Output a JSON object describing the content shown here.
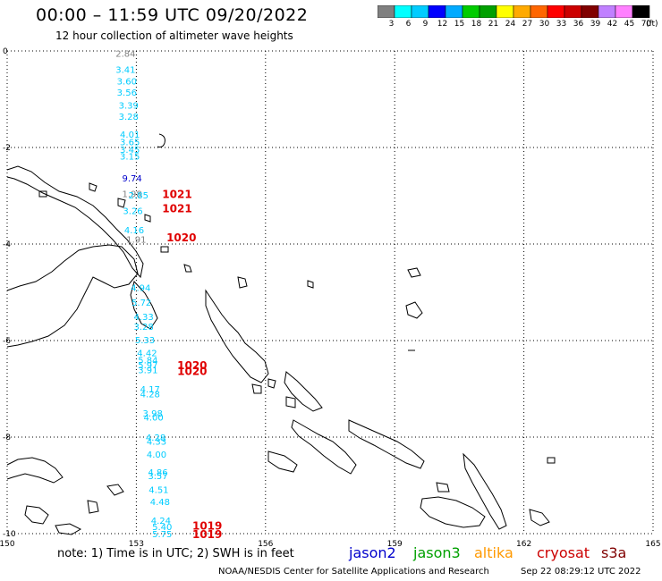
{
  "header": {
    "title": "00:00 – 11:59 UTC 09/20/2022",
    "subtitle": "12 hour collection of altimeter wave heights"
  },
  "colorbar": {
    "colors": [
      "#808080",
      "#00ffff",
      "#00ccff",
      "#0000ff",
      "#00aaff",
      "#00cc00",
      "#00a000",
      "#ffff00",
      "#ffaa00",
      "#ff6600",
      "#ff0000",
      "#cc0000",
      "#800000",
      "#c080ff",
      "#ff80ff",
      "#000000"
    ],
    "labels": [
      "3",
      "6",
      "9",
      "12",
      "15",
      "18",
      "21",
      "24",
      "27",
      "30",
      "33",
      "36",
      "39",
      "42",
      "45",
      "70"
    ],
    "unit": "(ft)"
  },
  "axes": {
    "lon_ticks": [
      "150",
      "153",
      "156",
      "159",
      "162",
      "165"
    ],
    "lat_ticks": [
      "0",
      "-2",
      "-4",
      "-6",
      "-8",
      "-10"
    ],
    "lon_range": [
      150,
      165
    ],
    "lat_range": [
      0,
      -10
    ]
  },
  "observations": [
    {
      "text": "2.84",
      "lon": 152.75,
      "lat": -0.05,
      "color": "#808080"
    },
    {
      "text": "3.41",
      "lon": 152.75,
      "lat": -0.38,
      "color": "#00ccff"
    },
    {
      "text": "3.60",
      "lon": 152.78,
      "lat": -0.62,
      "color": "#00ccff"
    },
    {
      "text": "3.56",
      "lon": 152.78,
      "lat": -0.85,
      "color": "#00ccff"
    },
    {
      "text": "3.39",
      "lon": 152.82,
      "lat": -1.12,
      "color": "#00ccff"
    },
    {
      "text": "3.28",
      "lon": 152.82,
      "lat": -1.35,
      "color": "#00ccff"
    },
    {
      "text": "4.01",
      "lon": 152.85,
      "lat": -1.72,
      "color": "#00ccff"
    },
    {
      "text": "3.65",
      "lon": 152.85,
      "lat": -1.88,
      "color": "#00ccff"
    },
    {
      "text": "3.45",
      "lon": 152.85,
      "lat": -2.04,
      "color": "#00ccff"
    },
    {
      "text": "3.15",
      "lon": 152.85,
      "lat": -2.18,
      "color": "#00ccff"
    },
    {
      "text": "9.74",
      "lon": 152.9,
      "lat": -2.63,
      "color": "#0000cc"
    },
    {
      "text": "1.98",
      "lon": 152.9,
      "lat": -2.95,
      "color": "#808080"
    },
    {
      "text": "2.85",
      "lon": 153.05,
      "lat": -2.98,
      "color": "#00ccff"
    },
    {
      "text": "3.26",
      "lon": 152.92,
      "lat": -3.31,
      "color": "#00ccff"
    },
    {
      "text": "4.16",
      "lon": 152.95,
      "lat": -3.7,
      "color": "#00ccff"
    },
    {
      "text": "1.91",
      "lon": 153.0,
      "lat": -3.9,
      "color": "#808080"
    },
    {
      "text": "4.94",
      "lon": 153.1,
      "lat": -4.9,
      "color": "#00ccff"
    },
    {
      "text": "5.72",
      "lon": 153.12,
      "lat": -5.2,
      "color": "#00ccff"
    },
    {
      "text": "4.33",
      "lon": 153.17,
      "lat": -5.5,
      "color": "#00ccff"
    },
    {
      "text": "3.28",
      "lon": 153.17,
      "lat": -5.7,
      "color": "#00ccff"
    },
    {
      "text": "5.33",
      "lon": 153.2,
      "lat": -5.98,
      "color": "#00ccff"
    },
    {
      "text": "4.42",
      "lon": 153.25,
      "lat": -6.25,
      "color": "#00ccff"
    },
    {
      "text": "5.84",
      "lon": 153.27,
      "lat": -6.4,
      "color": "#00ccff"
    },
    {
      "text": "5.97",
      "lon": 153.27,
      "lat": -6.5,
      "color": "#00ccff"
    },
    {
      "text": "3.91",
      "lon": 153.27,
      "lat": -6.6,
      "color": "#00ccff"
    },
    {
      "text": "4.17",
      "lon": 153.32,
      "lat": -7.0,
      "color": "#00ccff"
    },
    {
      "text": "4.28",
      "lon": 153.32,
      "lat": -7.1,
      "color": "#00ccff"
    },
    {
      "text": "3.98",
      "lon": 153.38,
      "lat": -7.5,
      "color": "#00ccff"
    },
    {
      "text": "4.00",
      "lon": 153.4,
      "lat": -7.58,
      "color": "#00ccff"
    },
    {
      "text": "4.28",
      "lon": 153.45,
      "lat": -8.0,
      "color": "#00ccff"
    },
    {
      "text": "4.33",
      "lon": 153.47,
      "lat": -8.08,
      "color": "#00ccff"
    },
    {
      "text": "4.00",
      "lon": 153.47,
      "lat": -8.35,
      "color": "#00ccff"
    },
    {
      "text": "4.86",
      "lon": 153.5,
      "lat": -8.72,
      "color": "#00ccff"
    },
    {
      "text": "3.57",
      "lon": 153.5,
      "lat": -8.8,
      "color": "#00ccff"
    },
    {
      "text": "4.51",
      "lon": 153.52,
      "lat": -9.08,
      "color": "#00ccff"
    },
    {
      "text": "4.48",
      "lon": 153.55,
      "lat": -9.33,
      "color": "#00ccff"
    },
    {
      "text": "4.24",
      "lon": 153.57,
      "lat": -9.72,
      "color": "#00ccff"
    },
    {
      "text": "5.40",
      "lon": 153.6,
      "lat": -9.85,
      "color": "#00ccff"
    },
    {
      "text": "5.75",
      "lon": 153.6,
      "lat": -10.0,
      "color": "#00ccff"
    }
  ],
  "pressure_labels": [
    {
      "text": "1021",
      "lon": 153.6,
      "lat": -2.95
    },
    {
      "text": "1021",
      "lon": 153.6,
      "lat": -3.25
    },
    {
      "text": "1020",
      "lon": 153.7,
      "lat": -3.85
    },
    {
      "text": "1020",
      "lon": 153.95,
      "lat": -6.5
    },
    {
      "text": "1020",
      "lon": 153.95,
      "lat": -6.62
    },
    {
      "text": "1019",
      "lon": 154.3,
      "lat": -9.82
    },
    {
      "text": "1019",
      "lon": 154.3,
      "lat": -10.0
    }
  ],
  "footer": {
    "note": "note:  1) Time is in UTC;  2) SWH is in feet",
    "legend": [
      {
        "name": "jason2",
        "color": "#0000cc"
      },
      {
        "name": "jason3",
        "color": "#00a000"
      },
      {
        "name": "altika",
        "color": "#ff9900"
      },
      {
        "name": "cryosat",
        "color": "#cc0000"
      },
      {
        "name": "s3a",
        "color": "#800000"
      }
    ],
    "credit": "NOAA/NESDIS Center for Satellite Applications and Research",
    "timestamp": "Sep 22 08:29:12 UTC 2022"
  }
}
